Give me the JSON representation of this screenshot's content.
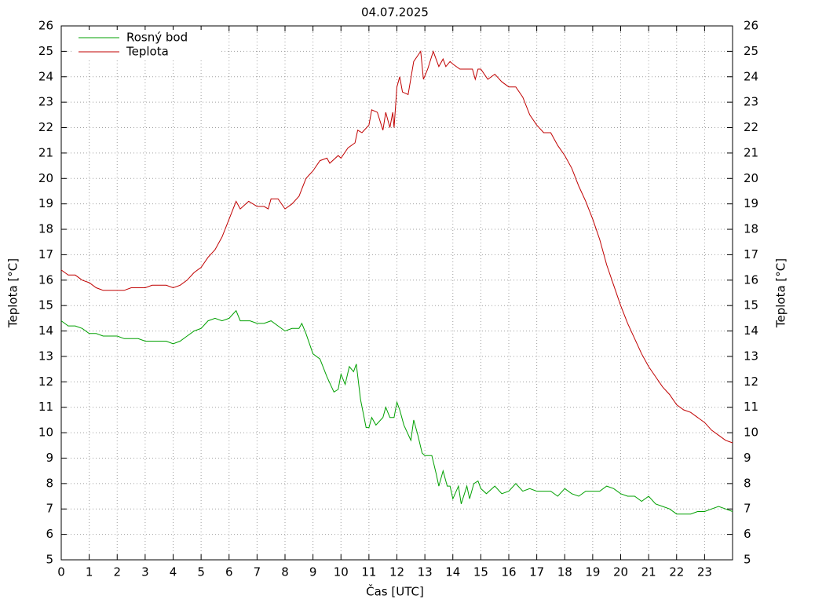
{
  "chart_data": {
    "type": "line",
    "title": "04.07.2025",
    "xlabel": "Čas [UTC]",
    "ylabel": "Teplota [°C]",
    "y2label": "Teplota [°C]",
    "xlim": [
      0,
      24
    ],
    "xticks": [
      0,
      1,
      2,
      3,
      4,
      5,
      6,
      7,
      8,
      9,
      10,
      11,
      12,
      13,
      14,
      15,
      16,
      17,
      18,
      19,
      20,
      21,
      22,
      23
    ],
    "ylim": [
      5,
      26
    ],
    "yticks": [
      5,
      6,
      7,
      8,
      9,
      10,
      11,
      12,
      13,
      14,
      15,
      16,
      17,
      18,
      19,
      20,
      21,
      22,
      23,
      24,
      25,
      26
    ],
    "y2lim": [
      5,
      26
    ],
    "y2ticks": [
      5,
      6,
      7,
      8,
      9,
      10,
      11,
      12,
      13,
      14,
      15,
      16,
      17,
      18,
      19,
      20,
      21,
      22,
      23,
      24,
      25,
      26
    ],
    "grid": true,
    "legend": "top-left",
    "series": [
      {
        "name": "Rosný bod",
        "color": "#00a000",
        "x": [
          0,
          0.25,
          0.5,
          0.75,
          1,
          1.25,
          1.5,
          1.75,
          2,
          2.25,
          2.5,
          2.75,
          3,
          3.25,
          3.5,
          3.75,
          4,
          4.25,
          4.5,
          4.75,
          5,
          5.25,
          5.5,
          5.75,
          6,
          6.25,
          6.4,
          6.75,
          7,
          7.25,
          7.5,
          7.75,
          8,
          8.25,
          8.5,
          8.6,
          8.75,
          9,
          9.25,
          9.5,
          9.75,
          9.9,
          10,
          10.15,
          10.3,
          10.45,
          10.55,
          10.7,
          10.9,
          11,
          11.1,
          11.25,
          11.5,
          11.6,
          11.75,
          11.9,
          12,
          12.1,
          12.25,
          12.5,
          12.6,
          12.75,
          12.9,
          13,
          13.25,
          13.4,
          13.5,
          13.65,
          13.8,
          13.9,
          14,
          14.2,
          14.3,
          14.5,
          14.6,
          14.75,
          14.9,
          15,
          15.2,
          15.5,
          15.75,
          16,
          16.25,
          16.5,
          16.75,
          17,
          17.25,
          17.5,
          17.75,
          18,
          18.25,
          18.5,
          18.75,
          19,
          19.25,
          19.5,
          19.75,
          20,
          20.25,
          20.5,
          20.75,
          21,
          21.25,
          21.5,
          21.75,
          22,
          22.25,
          22.5,
          22.75,
          23,
          23.25,
          23.5,
          23.75,
          24
        ],
        "values": [
          14.4,
          14.2,
          14.2,
          14.1,
          13.9,
          13.9,
          13.8,
          13.8,
          13.8,
          13.7,
          13.7,
          13.7,
          13.6,
          13.6,
          13.6,
          13.6,
          13.5,
          13.6,
          13.8,
          14.0,
          14.1,
          14.4,
          14.5,
          14.4,
          14.5,
          14.8,
          14.4,
          14.4,
          14.3,
          14.3,
          14.4,
          14.2,
          14.0,
          14.1,
          14.1,
          14.3,
          13.9,
          13.1,
          12.9,
          12.2,
          11.6,
          11.7,
          12.3,
          11.9,
          12.6,
          12.4,
          12.7,
          11.3,
          10.2,
          10.2,
          10.6,
          10.3,
          10.6,
          11.0,
          10.6,
          10.6,
          11.2,
          10.9,
          10.3,
          9.7,
          10.5,
          9.9,
          9.2,
          9.1,
          9.1,
          8.4,
          7.9,
          8.5,
          7.9,
          7.9,
          7.4,
          7.9,
          7.2,
          7.9,
          7.4,
          8.0,
          8.1,
          7.8,
          7.6,
          7.9,
          7.6,
          7.7,
          8.0,
          7.7,
          7.8,
          7.7,
          7.7,
          7.7,
          7.5,
          7.8,
          7.6,
          7.5,
          7.7,
          7.7,
          7.7,
          7.9,
          7.8,
          7.6,
          7.5,
          7.5,
          7.3,
          7.5,
          7.2,
          7.1,
          7.0,
          6.8,
          6.8,
          6.8,
          6.9,
          6.9,
          7.0,
          7.1,
          7.0,
          6.9
        ]
      },
      {
        "name": "Teplota",
        "color": "#c00000",
        "x": [
          0,
          0.25,
          0.5,
          0.75,
          1,
          1.25,
          1.5,
          1.75,
          2,
          2.25,
          2.5,
          2.75,
          3,
          3.25,
          3.5,
          3.75,
          4,
          4.25,
          4.5,
          4.75,
          5,
          5.25,
          5.5,
          5.75,
          6,
          6.25,
          6.4,
          6.7,
          7,
          7.25,
          7.4,
          7.5,
          7.75,
          8,
          8.25,
          8.5,
          8.75,
          9,
          9.25,
          9.5,
          9.6,
          9.9,
          10,
          10.25,
          10.5,
          10.6,
          10.75,
          11,
          11.1,
          11.3,
          11.5,
          11.6,
          11.75,
          11.85,
          11.9,
          12,
          12.1,
          12.2,
          12.4,
          12.6,
          12.85,
          12.95,
          13.1,
          13.3,
          13.5,
          13.65,
          13.75,
          13.9,
          14,
          14.25,
          14.5,
          14.7,
          14.8,
          14.9,
          15,
          15.25,
          15.5,
          15.75,
          16,
          16.25,
          16.5,
          16.75,
          17,
          17.25,
          17.5,
          17.75,
          18,
          18.25,
          18.5,
          18.75,
          19,
          19.25,
          19.5,
          19.75,
          20,
          20.25,
          20.5,
          20.75,
          21,
          21.25,
          21.5,
          21.75,
          22,
          22.25,
          22.5,
          22.75,
          23,
          23.25,
          23.5,
          23.75,
          24
        ],
        "values": [
          16.4,
          16.2,
          16.2,
          16.0,
          15.9,
          15.7,
          15.6,
          15.6,
          15.6,
          15.6,
          15.7,
          15.7,
          15.7,
          15.8,
          15.8,
          15.8,
          15.7,
          15.8,
          16.0,
          16.3,
          16.5,
          16.9,
          17.2,
          17.7,
          18.4,
          19.1,
          18.8,
          19.1,
          18.9,
          18.9,
          18.8,
          19.2,
          19.2,
          18.8,
          19.0,
          19.3,
          20.0,
          20.3,
          20.7,
          20.8,
          20.6,
          20.9,
          20.8,
          21.2,
          21.4,
          21.9,
          21.8,
          22.1,
          22.7,
          22.6,
          21.9,
          22.6,
          22.0,
          22.6,
          22.0,
          23.6,
          24.0,
          23.4,
          23.3,
          24.6,
          25.0,
          23.9,
          24.3,
          25.0,
          24.4,
          24.7,
          24.4,
          24.6,
          24.5,
          24.3,
          24.3,
          24.3,
          23.9,
          24.3,
          24.3,
          23.9,
          24.1,
          23.8,
          23.6,
          23.6,
          23.2,
          22.5,
          22.1,
          21.8,
          21.8,
          21.3,
          20.9,
          20.4,
          19.7,
          19.1,
          18.4,
          17.6,
          16.6,
          15.8,
          15.0,
          14.3,
          13.7,
          13.1,
          12.6,
          12.2,
          11.8,
          11.5,
          11.1,
          10.9,
          10.8,
          10.6,
          10.4,
          10.1,
          9.9,
          9.7,
          9.6
        ]
      }
    ]
  }
}
